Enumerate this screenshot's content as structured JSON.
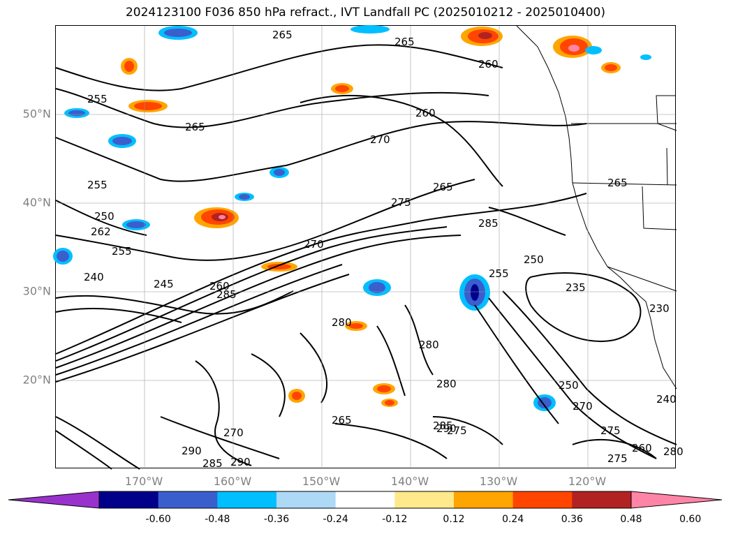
{
  "title": "2024123100 F036 850 hPa refract., IVT Landfall PC (2025010212 - 2025010400)",
  "map": {
    "projection": "PlateCarree",
    "extent": {
      "lon_min": -180,
      "lon_max": -110,
      "lat_min": 10,
      "lat_max": 60
    },
    "lat_ticks": [
      {
        "value": 20,
        "label": "20°N"
      },
      {
        "value": 30,
        "label": "30°N"
      },
      {
        "value": 40,
        "label": "40°N"
      },
      {
        "value": 50,
        "label": "50°N"
      }
    ],
    "lon_ticks": [
      {
        "value": -170,
        "label": "170°W"
      },
      {
        "value": -160,
        "label": "160°W"
      },
      {
        "value": -150,
        "label": "150°W"
      },
      {
        "value": -140,
        "label": "140°W"
      },
      {
        "value": -130,
        "label": "130°W"
      },
      {
        "value": -120,
        "label": "120°W"
      }
    ],
    "gridlines": true,
    "features": [
      "coastlines",
      "state-borders"
    ],
    "contour_labels": [
      "265",
      "265",
      "260",
      "255",
      "265",
      "260",
      "270",
      "255",
      "265",
      "275",
      "285",
      "250",
      "262",
      "255",
      "270",
      "240",
      "245",
      "260",
      "285",
      "255",
      "250",
      "235",
      "280",
      "280",
      "280",
      "290",
      "285",
      "265",
      "270",
      "290",
      "285",
      "290",
      "275",
      "240",
      "230",
      "265",
      "250",
      "270",
      "275",
      "260",
      "275",
      "280"
    ]
  },
  "colorbar": {
    "ticks": [
      "-0.60",
      "-0.48",
      "-0.36",
      "-0.24",
      "-0.12",
      "0.12",
      "0.24",
      "0.36",
      "0.48",
      "0.60"
    ],
    "colors": [
      "#9932cc",
      "#00008b",
      "#3a5fcd",
      "#00bfff",
      "#add8f6",
      "#ffffff",
      "#ffe98a",
      "#ffa500",
      "#ff4500",
      "#b22222",
      "#ff85a6"
    ],
    "extend": "both"
  }
}
